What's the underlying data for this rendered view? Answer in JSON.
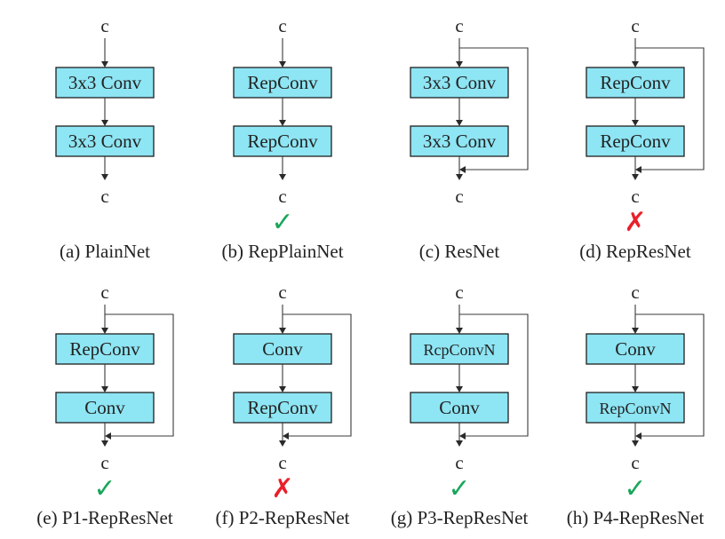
{
  "io_label": "c",
  "colors": {
    "block": "#8ee5f3",
    "ok": "#19a65a",
    "bad": "#e8202a"
  },
  "panels": [
    {
      "caption": "(a) PlainNet",
      "top": "3x3 Conv",
      "bottom": "3x3 Conv",
      "skip": false,
      "mark": ""
    },
    {
      "caption": "(b) RepPlainNet",
      "top": "RepConv",
      "bottom": "RepConv",
      "skip": false,
      "mark": "check"
    },
    {
      "caption": "(c) ResNet",
      "top": "3x3 Conv",
      "bottom": "3x3 Conv",
      "skip": true,
      "mark": ""
    },
    {
      "caption": "(d) RepResNet",
      "top": "RepConv",
      "bottom": "RepConv",
      "skip": true,
      "mark": "cross"
    },
    {
      "caption": "(e) P1-RepResNet",
      "top": "RepConv",
      "bottom": "Conv",
      "skip": true,
      "mark": "check"
    },
    {
      "caption": "(f) P2-RepResNet",
      "top": "Conv",
      "bottom": "RepConv",
      "skip": true,
      "mark": "cross"
    },
    {
      "caption": "(g) P3-RepResNet",
      "top": "RcpConvN",
      "bottom": "Conv",
      "skip": true,
      "mark": "check"
    },
    {
      "caption": "(h) P4-RepResNet",
      "top": "Conv",
      "bottom": "RepConvN",
      "skip": true,
      "mark": "check"
    }
  ],
  "marks": {
    "check": "✓",
    "cross": "✗"
  }
}
